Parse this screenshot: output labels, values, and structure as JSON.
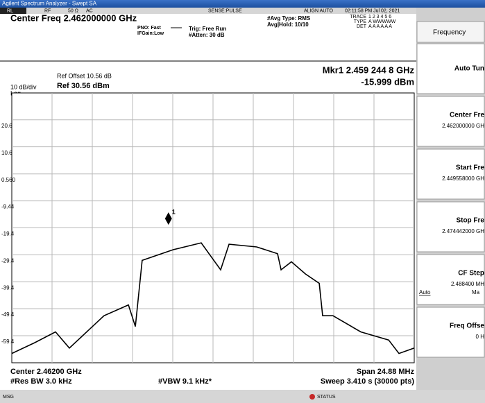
{
  "screen": {
    "window_title": "Agilent Spectrum Analyzer - Swept SA",
    "status_items": [
      "RL",
      "RF",
      "50 Ω",
      "AC",
      "SENSE:PULSE",
      "ALIGN AUTO",
      "02:11:58 PM Jul 02, 2021"
    ],
    "center_freq_header": "Center Freq 2.462000000 GHz",
    "pno": "PNO: Fast",
    "ifgain": "IFGain:Low",
    "trig": "Trig: Free Run",
    "atten": "#Atten: 30 dB",
    "avg_type": "#Avg Type: RMS",
    "avg_hold": "Avg|Hold: 10/10",
    "trace_table": {
      "trace": "TRACE",
      "trace_nums": "1 2 3 4 5 6",
      "type": "TYPE",
      "type_vals": "A WWWWW",
      "det": "DET",
      "det_vals": "A A A A A A"
    },
    "marker_readout_freq": "Mkr1 2.459 244 8 GHz",
    "marker_readout_level": "-15.999 dBm",
    "ref_offset": "Ref Offset 10.56 dB",
    "scale": "10 dB/div",
    "ref_level": "Ref 30.56 dBm",
    "log": "Log",
    "center_footer": "Center 2.46200 GHz",
    "span_footer": "Span 24.88 MHz",
    "res_bw": "#Res BW 3.0 kHz",
    "vbw": "#VBW 9.1 kHz*",
    "sweep": "Sweep  3.410 s (30000 pts)",
    "msg": "MSG",
    "status": "STATUS",
    "menu": {
      "title": "Frequency",
      "items": [
        {
          "label": "Auto Tun"
        },
        {
          "label": "Center Fre",
          "value": "2.462000000 GH"
        },
        {
          "label": "Start Fre",
          "value": "2.449558000 GH"
        },
        {
          "label": "Stop Fre",
          "value": "2.474442000 GH"
        },
        {
          "label": "CF Step",
          "value": "2.488400 MH",
          "left": "Auto",
          "right": "Ma"
        },
        {
          "label": "Freq Offse",
          "value": "0 H"
        }
      ]
    }
  },
  "chart_data": {
    "type": "line",
    "x": [
      2.44956,
      2.45097,
      2.45226,
      2.45312,
      2.45526,
      2.45677,
      2.4572,
      2.45762,
      2.45955,
      2.46127,
      2.46247,
      2.46299,
      2.4647,
      2.46599,
      2.46621,
      2.46685,
      2.46771,
      2.46857,
      2.46878,
      2.46942,
      2.47114,
      2.47286,
      2.4735,
      2.47444
    ],
    "series": [
      {
        "name": "Trace 1",
        "color": "#000000",
        "values": [
          -66,
          -62,
          -58,
          -64,
          -52,
          -48,
          -56,
          -31.5,
          -27.5,
          -25,
          -35,
          -25.5,
          -26.5,
          -29,
          -35,
          -32,
          -36.5,
          -40,
          -52,
          -52,
          -58,
          -61,
          -66,
          -64
        ]
      }
    ],
    "xlim": [
      2.449558,
      2.474442
    ],
    "ylim": [
      -69.44,
      30.56
    ],
    "yticks": [
      20.6,
      10.6,
      {
        "value": 0.56,
        "label": "0.560"
      },
      -9.44,
      -19.4,
      -29.4,
      -39.4,
      -49.4,
      -59.4
    ],
    "x_divisions": 10,
    "grid": true,
    "marker": {
      "label": "1",
      "x": 2.4592448,
      "y": -15.999
    }
  }
}
